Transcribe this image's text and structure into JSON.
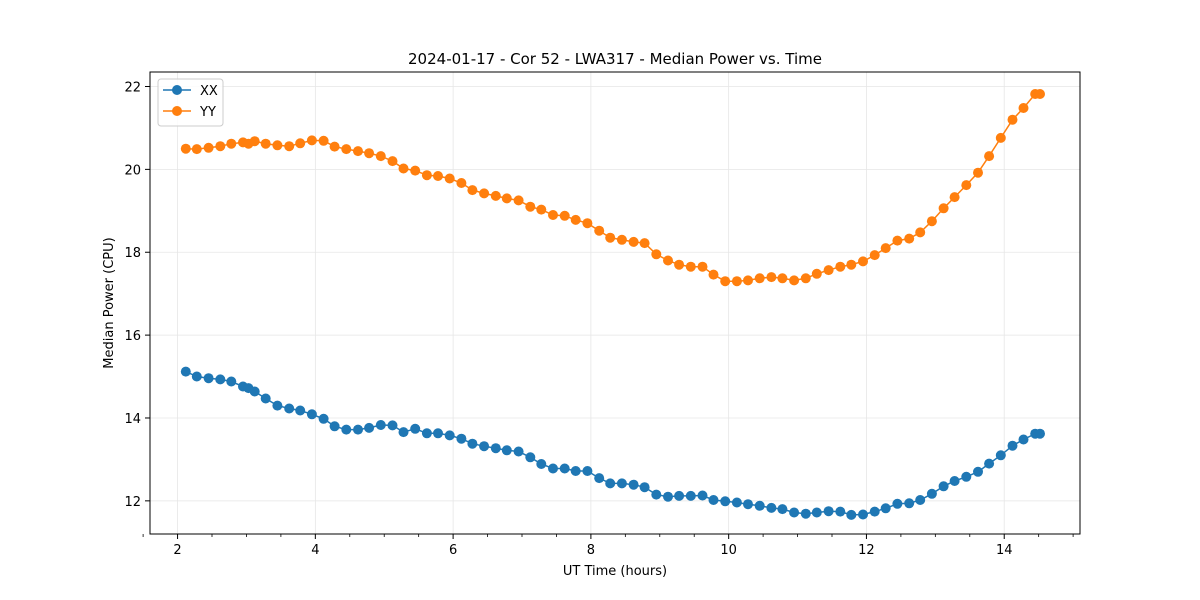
{
  "chart_data": {
    "type": "line",
    "title": "2024-01-17 - Cor 52 - LWA317 - Median Power vs. Time",
    "xlabel": "UT Time (hours)",
    "ylabel": "Median Power (CPU)",
    "xlim": [
      1.6,
      15.1
    ],
    "ylim": [
      11.2,
      22.35
    ],
    "xticks": [
      2,
      4,
      6,
      8,
      10,
      12,
      14
    ],
    "xtick_labels": [
      "2",
      "4",
      "6",
      "8",
      "10",
      "12",
      "14"
    ],
    "yticks": [
      12,
      14,
      16,
      18,
      20,
      22
    ],
    "ytick_labels": [
      "12",
      "14",
      "16",
      "18",
      "20",
      "22"
    ],
    "grid": true,
    "legend_position": "top-left",
    "x": [
      2.12,
      2.28,
      2.45,
      2.62,
      2.78,
      2.95,
      3.03,
      3.12,
      3.28,
      3.45,
      3.62,
      3.78,
      3.95,
      4.12,
      4.28,
      4.45,
      4.62,
      4.78,
      4.95,
      5.12,
      5.28,
      5.45,
      5.62,
      5.78,
      5.95,
      6.12,
      6.28,
      6.45,
      6.62,
      6.78,
      6.95,
      7.12,
      7.28,
      7.45,
      7.62,
      7.78,
      7.95,
      8.12,
      8.28,
      8.45,
      8.62,
      8.78,
      8.95,
      9.12,
      9.28,
      9.45,
      9.62,
      9.78,
      9.95,
      10.12,
      10.28,
      10.45,
      10.62,
      10.78,
      10.95,
      11.12,
      11.28,
      11.45,
      11.62,
      11.78,
      11.95,
      12.12,
      12.28,
      12.45,
      12.62,
      12.78,
      12.95,
      13.12,
      13.28,
      13.45,
      13.62,
      13.78,
      13.95,
      14.12,
      14.28,
      14.45,
      14.52
    ],
    "series": [
      {
        "name": "XX",
        "color": "#1f77b4",
        "values": [
          15.12,
          15.0,
          14.96,
          14.93,
          14.88,
          14.76,
          14.72,
          14.64,
          14.47,
          14.3,
          14.23,
          14.18,
          14.09,
          13.98,
          13.8,
          13.72,
          13.72,
          13.76,
          13.83,
          13.82,
          13.66,
          13.74,
          13.63,
          13.63,
          13.58,
          13.5,
          13.38,
          13.32,
          13.27,
          13.22,
          13.19,
          13.05,
          12.89,
          12.78,
          12.78,
          12.72,
          12.72,
          12.55,
          12.42,
          12.42,
          12.39,
          12.33,
          12.15,
          12.1,
          12.12,
          12.12,
          12.13,
          12.02,
          11.99,
          11.96,
          11.92,
          11.88,
          11.83,
          11.8,
          11.72,
          11.69,
          11.72,
          11.75,
          11.74,
          11.66,
          11.67,
          11.74,
          11.82,
          11.93,
          11.94,
          12.02,
          12.17,
          12.35,
          12.48,
          12.58,
          12.7,
          12.9,
          13.1,
          13.33,
          13.48,
          13.62,
          13.62
        ]
      },
      {
        "name": "YY",
        "color": "#ff7f0e",
        "values": [
          20.5,
          20.49,
          20.52,
          20.56,
          20.62,
          20.65,
          20.62,
          20.68,
          20.62,
          20.58,
          20.56,
          20.63,
          20.7,
          20.69,
          20.55,
          20.49,
          20.44,
          20.39,
          20.32,
          20.2,
          20.02,
          19.97,
          19.86,
          19.84,
          19.78,
          19.67,
          19.5,
          19.42,
          19.36,
          19.3,
          19.25,
          19.1,
          19.03,
          18.9,
          18.88,
          18.78,
          18.7,
          18.52,
          18.35,
          18.3,
          18.25,
          18.22,
          17.95,
          17.8,
          17.7,
          17.65,
          17.65,
          17.46,
          17.3,
          17.3,
          17.32,
          17.37,
          17.4,
          17.37,
          17.32,
          17.37,
          17.48,
          17.57,
          17.65,
          17.7,
          17.78,
          17.93,
          18.1,
          18.28,
          18.33,
          18.48,
          18.75,
          19.06,
          19.33,
          19.62,
          19.92,
          20.32,
          20.76,
          21.2,
          21.48,
          21.82,
          21.82
        ]
      }
    ]
  }
}
